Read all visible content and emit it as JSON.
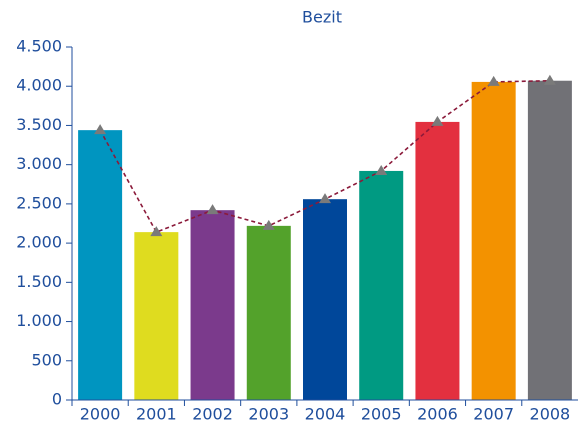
{
  "chart_data": {
    "type": "bar",
    "title": "Bezit",
    "categories": [
      "2000",
      "2001",
      "2002",
      "2003",
      "2004",
      "2005",
      "2006",
      "2007",
      "2008"
    ],
    "values": [
      3440,
      2140,
      2420,
      2220,
      2560,
      2920,
      3545,
      4055,
      4070
    ],
    "colors": [
      "#0095c0",
      "#dfdc1f",
      "#7b3a8c",
      "#53a22b",
      "#00479a",
      "#009a82",
      "#e3303f",
      "#f39200",
      "#717176"
    ],
    "line_color": "#8b1a3a",
    "marker_color": "#7a7a7a",
    "ylim": [
      0,
      4500
    ],
    "yticks": [
      0,
      500,
      {
        "value": 1000,
        "label": "1.000"
      },
      {
        "value": 1500,
        "label": "1.500"
      },
      {
        "value": 2000,
        "label": "2.000"
      },
      {
        "value": 2500,
        "label": "2.500"
      },
      {
        "value": 3000,
        "label": "3.000"
      },
      {
        "value": 3500,
        "label": "3.500"
      },
      {
        "value": 4000,
        "label": "4.000"
      },
      {
        "value": 4500,
        "label": "4.500"
      }
    ]
  }
}
